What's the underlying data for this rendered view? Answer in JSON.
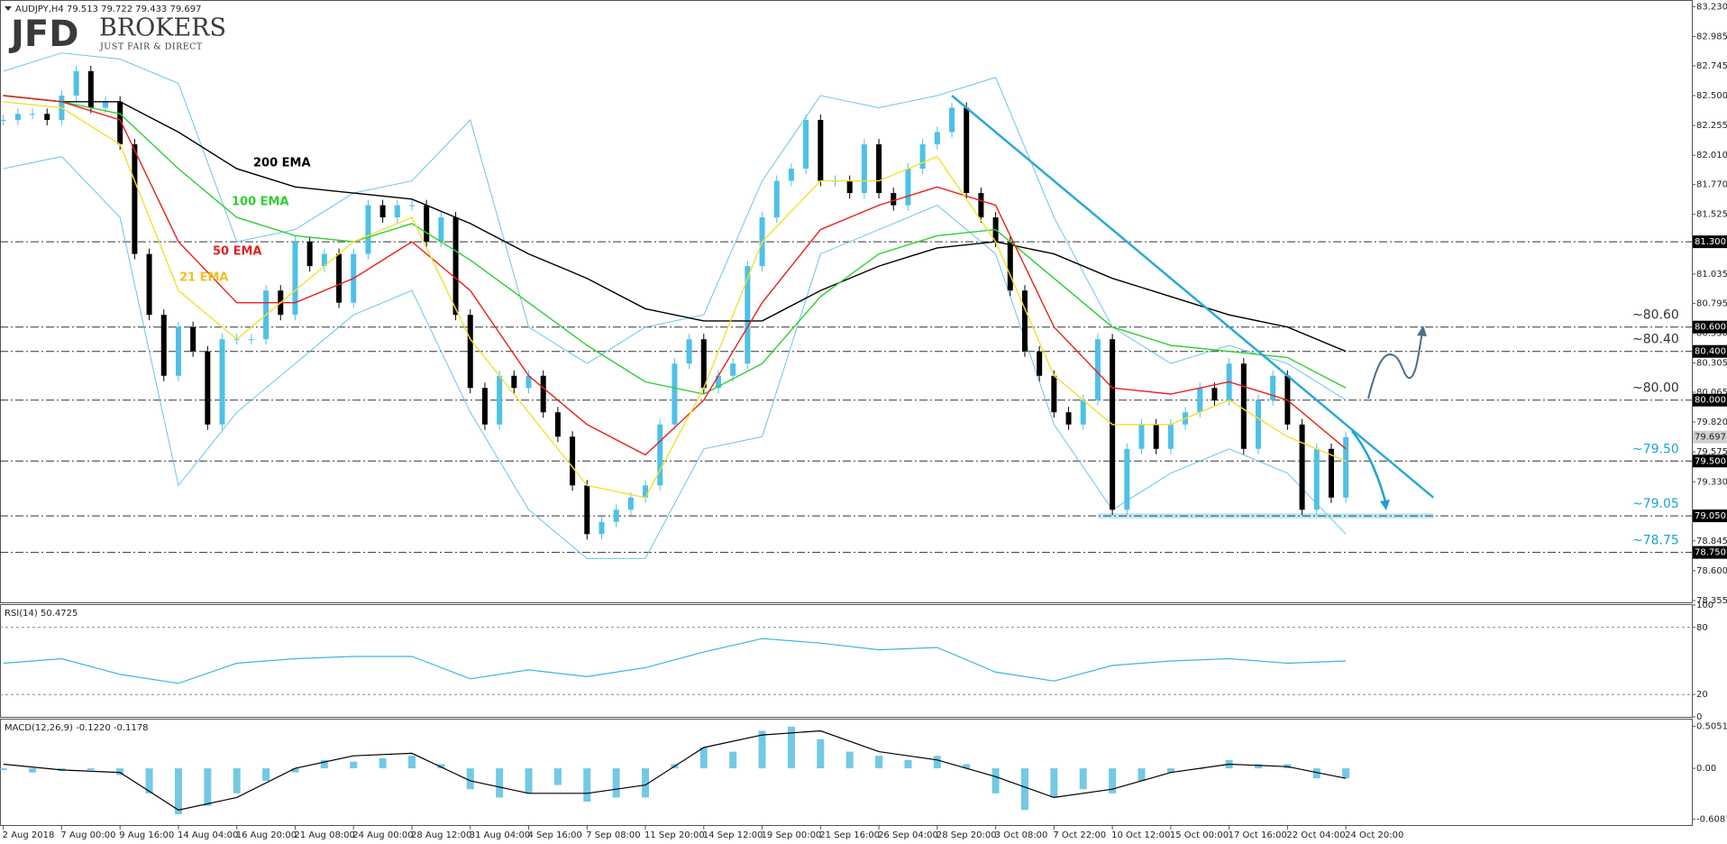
{
  "chart_data": {
    "type": "candlestick",
    "header": "AUDJPY,H4  79.513 79.722 79.433 79.697",
    "logo": {
      "main": "JFD",
      "brand": "BROKERS",
      "tagline": "JUST FAIR & DIRECT"
    },
    "up_color": "#4fc0e8",
    "down_color": "#000000",
    "ylim": [
      78.34,
      83.27
    ],
    "yticks": [
      {
        "value": 83.23,
        "label": "83.230"
      },
      82.985,
      82.745,
      {
        "value": 82.5,
        "label": "82.500"
      },
      82.255,
      {
        "value": 82.01,
        "label": "82.010"
      },
      {
        "value": 81.77,
        "label": "81.770"
      },
      81.525,
      81.035,
      80.795,
      {
        "value": 80.55,
        "label": "80.550"
      },
      80.305,
      80.065,
      {
        "value": 79.82,
        "label": "79.820"
      },
      79.575,
      {
        "value": 79.33,
        "label": "79.330"
      },
      78.845,
      {
        "value": 78.6,
        "label": "78.600"
      },
      78.355
    ],
    "xlabels": [
      "2 Aug 2018",
      "7 Aug 00:00",
      "9 Aug 16:00",
      "14 Aug 04:00",
      "16 Aug 20:00",
      "21 Aug 08:00",
      "24 Aug 00:00",
      "28 Aug 12:00",
      "31 Aug 04:00",
      "4 Sep 16:00",
      "7 Sep 08:00",
      "11 Sep 20:00",
      "14 Sep 12:00",
      "19 Sep 00:00",
      "21 Sep 16:00",
      "26 Sep 04:00",
      "28 Sep 20:00",
      "3 Oct 08:00",
      "7 Oct 22:00",
      "10 Oct 12:00",
      "15 Oct 00:00",
      "17 Oct 16:00",
      "22 Oct 04:00",
      "24 Oct 20:00"
    ],
    "prices": [
      82.3,
      82.35,
      82.35,
      82.3,
      82.5,
      82.7,
      82.4,
      82.45,
      82.1,
      81.2,
      80.7,
      80.2,
      80.6,
      80.4,
      79.8,
      80.5,
      80.5,
      80.5,
      80.9,
      80.7,
      81.3,
      81.1,
      81.2,
      80.8,
      81.2,
      81.6,
      81.5,
      81.6,
      81.6,
      81.3,
      81.5,
      80.7,
      80.1,
      79.8,
      80.2,
      80.1,
      80.2,
      79.9,
      79.7,
      79.3,
      78.9,
      79.0,
      79.1,
      79.2,
      79.3,
      79.8,
      80.3,
      80.5,
      80.1,
      80.2,
      80.3,
      81.1,
      81.5,
      81.8,
      81.9,
      82.3,
      81.8,
      81.8,
      81.7,
      82.1,
      81.7,
      81.6,
      81.9,
      82.1,
      82.2,
      82.4,
      81.7,
      81.5,
      81.3,
      80.9,
      80.4,
      80.2,
      79.9,
      79.8,
      80.0,
      80.5,
      79.1,
      79.6,
      79.8,
      79.6,
      79.8,
      79.9,
      80.1,
      80.0,
      80.3,
      79.6,
      80.0,
      80.2,
      79.8,
      79.1,
      79.6,
      79.2,
      79.697
    ],
    "series": [
      {
        "name": "200 EMA",
        "color": "#000000",
        "label_color": "#000000",
        "values": [
          82.5,
          82.45,
          82.45,
          82.2,
          81.9,
          81.75,
          81.7,
          81.65,
          81.45,
          81.2,
          81.0,
          80.75,
          80.65,
          80.65,
          80.9,
          81.1,
          81.25,
          81.3,
          81.2,
          81.0,
          80.85,
          80.7,
          80.6,
          80.4
        ]
      },
      {
        "name": "100 EMA",
        "color": "#2fcf2f",
        "label_color": "#2fcf2f",
        "values": [
          82.5,
          82.45,
          82.35,
          81.9,
          81.5,
          81.35,
          81.3,
          81.45,
          81.15,
          80.8,
          80.45,
          80.15,
          80.05,
          80.3,
          80.85,
          81.2,
          81.35,
          81.4,
          81.0,
          80.6,
          80.45,
          80.4,
          80.35,
          80.1
        ]
      },
      {
        "name": "50 EMA",
        "color": "#e8201a",
        "label_color": "#e02020",
        "values": [
          82.5,
          82.45,
          82.3,
          81.3,
          80.8,
          80.8,
          81.0,
          81.3,
          80.9,
          80.2,
          79.8,
          79.55,
          80.0,
          80.8,
          81.4,
          81.6,
          81.75,
          81.6,
          80.6,
          80.1,
          80.05,
          80.15,
          80.0,
          79.6
        ]
      },
      {
        "name": "21 EMA",
        "color": "#f2e030",
        "label_color": "#f0c020",
        "values": [
          82.45,
          82.4,
          82.1,
          80.9,
          80.5,
          80.9,
          81.3,
          81.5,
          80.5,
          79.9,
          79.3,
          79.2,
          80.1,
          81.3,
          81.8,
          81.8,
          82.0,
          81.3,
          80.2,
          79.8,
          79.8,
          80.0,
          79.7,
          79.5
        ]
      }
    ],
    "bands": {
      "color": "#6cc4ea",
      "upper": [
        82.7,
        82.85,
        82.8,
        82.6,
        81.3,
        81.4,
        81.7,
        81.8,
        82.3,
        80.6,
        80.3,
        80.6,
        80.7,
        81.8,
        82.5,
        82.4,
        82.5,
        82.65,
        81.5,
        80.6,
        80.3,
        80.45,
        80.3,
        80.0
      ],
      "lower": [
        81.9,
        82.0,
        81.5,
        79.3,
        79.9,
        80.3,
        80.7,
        80.9,
        79.9,
        79.1,
        78.7,
        78.7,
        79.6,
        79.7,
        81.2,
        81.4,
        81.6,
        81.2,
        79.8,
        79.1,
        79.4,
        79.6,
        79.4,
        78.9
      ]
    },
    "levels": [
      {
        "value": 81.3,
        "label": "81.300"
      },
      {
        "value": 80.6,
        "label": "80.600",
        "note": "~80.60",
        "color": "#333333"
      },
      {
        "value": 80.4,
        "label": "80.400",
        "note": "~80.40",
        "color": "#333333"
      },
      {
        "value": 80.0,
        "label": "80.000",
        "note": "~80.00",
        "color": "#333333"
      },
      {
        "value": 79.5,
        "label": "79.500",
        "note": "~79.50",
        "color": "#1aa3d1"
      },
      {
        "value": 79.05,
        "label": "79.050",
        "note": "~79.05",
        "color": "#1aa3d1"
      },
      {
        "value": 78.75,
        "label": "78.750",
        "note": "~78.75",
        "color": "#1aa3d1"
      }
    ],
    "current": {
      "value": 79.697,
      "label": "79.697"
    },
    "trendline": {
      "x": [
        65,
        98
      ],
      "values": [
        82.5,
        79.2
      ],
      "color": "#2aa9d6"
    },
    "support_zone": {
      "x": [
        75,
        98
      ],
      "value": 79.05,
      "color": "#bfeaf5"
    },
    "rsi": {
      "title": "RSI(14) 50.4725",
      "color": "#3db4e3",
      "ylim": [
        0,
        100
      ],
      "yticks": [
        100,
        80,
        20,
        0
      ],
      "values": [
        48,
        52,
        38,
        30,
        48,
        52,
        54,
        54,
        34,
        42,
        36,
        44,
        58,
        70,
        66,
        60,
        62,
        40,
        32,
        46,
        50,
        52,
        48,
        50
      ]
    },
    "macd": {
      "title": "MACD(12,26,9) -0.1220 -0.1178",
      "color": "#5bc0de",
      "signal_color": "#000000",
      "ylim": [
        -0.6915,
        0.585
      ],
      "yticks": [
        0.5051,
        {
          "value": 0,
          "label": "0.00"
        },
        -0.6087
      ],
      "values": [
        -0.02,
        -0.05,
        -0.03,
        -0.02,
        -0.08,
        -0.3,
        -0.55,
        -0.45,
        -0.3,
        -0.15,
        -0.05,
        0.1,
        0.08,
        0.12,
        0.15,
        0.05,
        -0.25,
        -0.35,
        -0.3,
        -0.2,
        -0.4,
        -0.35,
        -0.35,
        0.05,
        0.25,
        0.2,
        0.45,
        0.5,
        0.35,
        0.2,
        0.15,
        0.1,
        0.15,
        0.05,
        -0.3,
        -0.5,
        -0.35,
        -0.25,
        -0.3,
        -0.15,
        -0.05,
        0.0,
        0.1,
        0.05,
        0.05,
        -0.12,
        -0.12
      ],
      "signal": [
        0.05,
        -0.02,
        -0.05,
        -0.5,
        -0.35,
        0.0,
        0.15,
        0.18,
        -0.15,
        -0.3,
        -0.3,
        -0.2,
        0.25,
        0.4,
        0.45,
        0.2,
        0.1,
        -0.1,
        -0.35,
        -0.25,
        -0.05,
        0.05,
        0.02,
        -0.12
      ]
    }
  }
}
